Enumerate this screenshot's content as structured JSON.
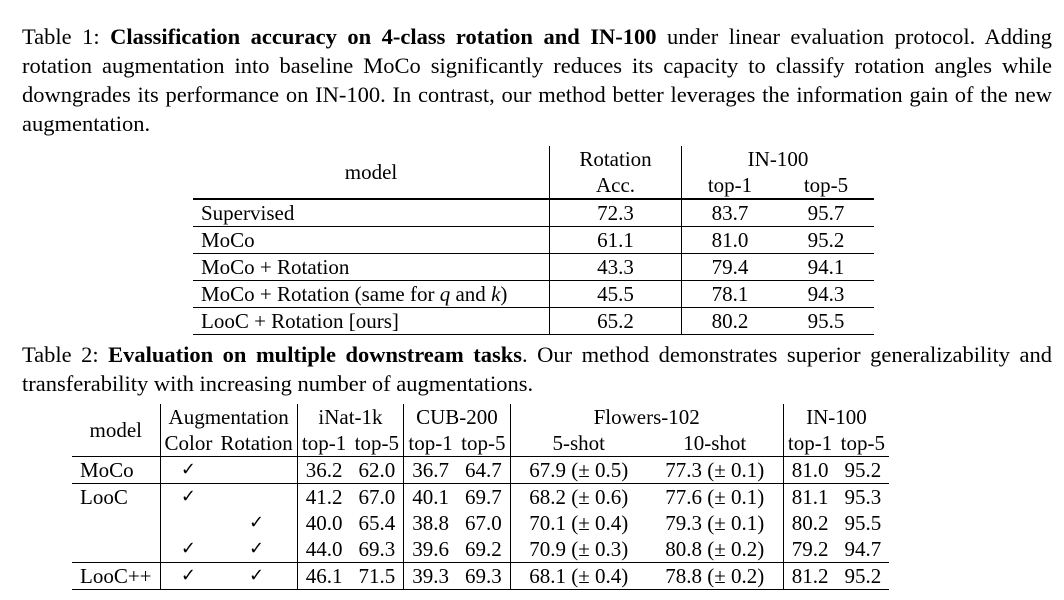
{
  "table1": {
    "caption_label": "Table 1:",
    "caption_bold": "Classification accuracy on 4-class rotation and IN-100",
    "caption_rest": "under linear evaluation protocol. Adding rotation augmentation into baseline MoCo significantly reduces its capacity to classify rotation angles while downgrades its performance on IN-100. In contrast, our method better leverages the information gain of the new augmentation.",
    "headers": {
      "model": "model",
      "rotation_line1": "Rotation",
      "rotation_line2": "Acc.",
      "in100": "IN-100",
      "top1": "top-1",
      "top5": "top-5"
    },
    "rows": [
      {
        "model": "Supervised",
        "rot": "72.3",
        "top1": "83.7",
        "top5": "95.7"
      },
      {
        "model": "MoCo",
        "rot": "61.1",
        "top1": "81.0",
        "top5": "95.2"
      },
      {
        "model": "MoCo + Rotation",
        "rot": "43.3",
        "top1": "79.4",
        "top5": "94.1"
      },
      {
        "model_pre": "MoCo + Rotation (same for ",
        "model_q": "q",
        "model_mid": " and ",
        "model_k": "k",
        "model_post": ")",
        "rot": "45.5",
        "top1": "78.1",
        "top5": "94.3"
      },
      {
        "model": "LooC + Rotation [ours]",
        "rot": "65.2",
        "top1": "80.2",
        "top5": "95.5"
      }
    ]
  },
  "table2": {
    "caption_label": "Table 2:",
    "caption_bold": "Evaluation on multiple downstream tasks",
    "caption_rest": ". Our method demonstrates superior generalizability and transferability with increasing number of augmentations.",
    "headers": {
      "model": "model",
      "augmentation": "Augmentation",
      "color": "Color",
      "rotation": "Rotation",
      "inat": "iNat-1k",
      "cub": "CUB-200",
      "flowers": "Flowers-102",
      "in100": "IN-100",
      "top1": "top-1",
      "top5": "top-5",
      "shot5": "5-shot",
      "shot10": "10-shot"
    },
    "check_mark": "✓",
    "rows": [
      {
        "model": "MoCo",
        "color": "✓",
        "rotation": "",
        "inat1": "36.2",
        "inat5": "62.0",
        "cub1": "36.7",
        "cub5": "64.7",
        "f5": "67.9 (± 0.5)",
        "f10": "77.3 (± 0.1)",
        "in1": "81.0",
        "in5": "95.2"
      },
      {
        "model": "LooC",
        "color": "✓",
        "rotation": "",
        "inat1": "41.2",
        "inat5": "67.0",
        "cub1": "40.1",
        "cub5": "69.7",
        "f5": "68.2 (± 0.6)",
        "f10": "77.6 (± 0.1)",
        "in1": "81.1",
        "in5": "95.3"
      },
      {
        "model": "",
        "color": "",
        "rotation": "✓",
        "inat1": "40.0",
        "inat5": "65.4",
        "cub1": "38.8",
        "cub5": "67.0",
        "f5": "70.1 (± 0.4)",
        "f10": "79.3 (± 0.1)",
        "in1": "80.2",
        "in5": "95.5"
      },
      {
        "model": "",
        "color": "✓",
        "rotation": "✓",
        "inat1": "44.0",
        "inat5": "69.3",
        "cub1": "39.6",
        "cub5": "69.2",
        "f5": "70.9 (± 0.3)",
        "f10": "80.8 (± 0.2)",
        "in1": "79.2",
        "in5": "94.7"
      },
      {
        "model": "LooC++",
        "color": "✓",
        "rotation": "✓",
        "inat1": "46.1",
        "inat5": "71.5",
        "cub1": "39.3",
        "cub5": "69.3",
        "f5": "68.1 (± 0.4)",
        "f10": "78.8 (± 0.2)",
        "in1": "81.2",
        "in5": "95.2"
      }
    ]
  }
}
